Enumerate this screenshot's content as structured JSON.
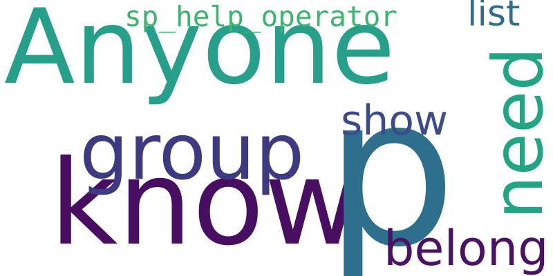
{
  "words": [
    {
      "key": "anyone",
      "text": "Anyone",
      "color": "#26a08a"
    },
    {
      "key": "know",
      "text": "know",
      "color": "#470e61"
    },
    {
      "key": "p",
      "text": "p",
      "color": "#2e6f8e"
    },
    {
      "key": "group",
      "text": "group",
      "color": "#3e3a81"
    },
    {
      "key": "need",
      "text": "need",
      "color": "#22a585"
    },
    {
      "key": "sp_help_operator",
      "text": "sp_help_operator",
      "color": "#3bb56f"
    },
    {
      "key": "show",
      "text": "show",
      "color": "#3b4c8a"
    },
    {
      "key": "list",
      "text": "list",
      "color": "#2f6d8e"
    },
    {
      "key": "belong",
      "text": "belong",
      "color": "#4a1164"
    }
  ],
  "palette": {
    "background": "#ffffff"
  }
}
